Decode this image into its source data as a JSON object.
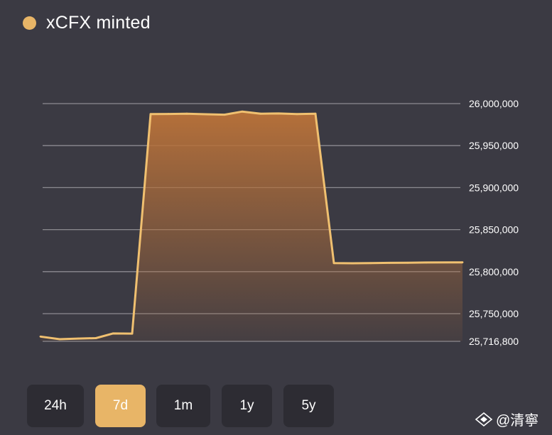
{
  "legend": {
    "label": "xCFX minted",
    "color": "#e8b567"
  },
  "time_ranges": {
    "options": [
      "24h",
      "7d",
      "1m",
      "1y",
      "5y"
    ],
    "selected": "7d"
  },
  "watermark": {
    "text": "@清寧"
  },
  "colors": {
    "background": "#3b3a43",
    "line": "#f0c070",
    "fill_top": "#b5703a",
    "gridline": "#8c8b91",
    "button_bg": "#2d2c33",
    "button_active": "#e8b567"
  },
  "chart_data": {
    "type": "area",
    "title": "",
    "xlabel": "",
    "ylabel": "",
    "ylim": [
      25716800,
      26000000
    ],
    "y_ticks": [
      26000000,
      25950000,
      25900000,
      25850000,
      25800000,
      25750000,
      25716800
    ],
    "y_tick_labels": [
      "26,000,000",
      "25,950,000",
      "25,900,000",
      "25,850,000",
      "25,800,000",
      "25,750,000",
      "25,716,800"
    ],
    "y_axis_position": "right",
    "grid": true,
    "legend_position": "top-left",
    "series": [
      {
        "name": "xCFX minted",
        "values": [
          25718500,
          25716800,
          25717200,
          25717500,
          25720500,
          25720400,
          25987500,
          25987700,
          25988000,
          25987300,
          25986800,
          25990500,
          25988000,
          25988300,
          25987500,
          25988000,
          25810200,
          25810000,
          25810200,
          25810500,
          25810600,
          25810900,
          25811100
        ]
      }
    ],
    "x": [
      0,
      1,
      2,
      3,
      4,
      5,
      6,
      7,
      8,
      9,
      10,
      11,
      12,
      13,
      14,
      15,
      16,
      17,
      18,
      19,
      20,
      21,
      22
    ]
  }
}
